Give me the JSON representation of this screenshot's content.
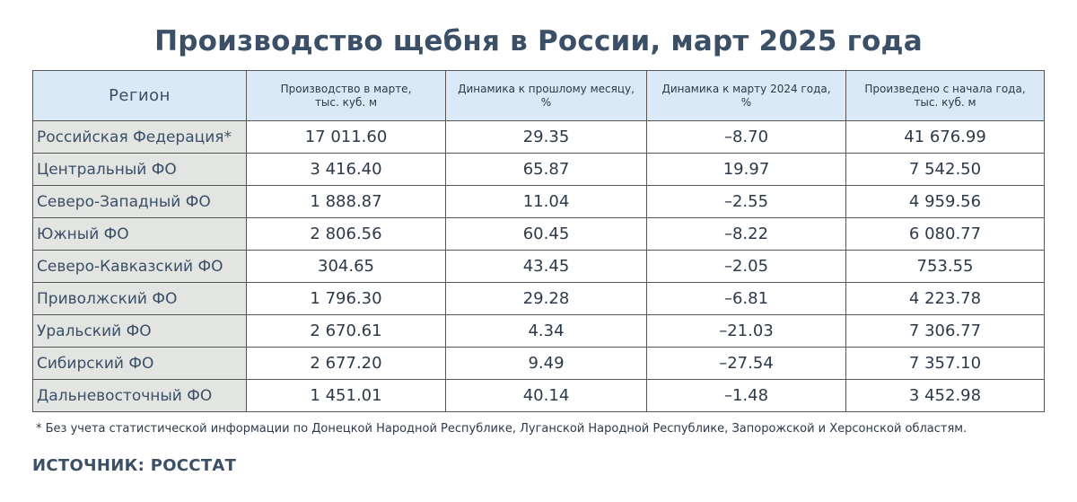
{
  "title": "Производство щебня в России, март 2025 года",
  "table": {
    "headers": {
      "region": "Регион",
      "production_line1": "Производство в марте,",
      "production_line2": "тыс. куб. м",
      "mom_line1": "Динамика к прошлому месяцу,",
      "mom_line2": "%",
      "yoy_line1": "Динамика к марту 2024 года,",
      "yoy_line2": "%",
      "ytd_line1": "Произведено с начала года,",
      "ytd_line2": "тыс. куб. м"
    },
    "rows": [
      {
        "region": "Российская Федерация*",
        "production": "17 011.60",
        "mom": "29.35",
        "mom_sign": "pos",
        "yoy": "–8.70",
        "yoy_sign": "neg",
        "ytd": "41 676.99"
      },
      {
        "region": "Центральный ФО",
        "production": "3 416.40",
        "mom": "65.87",
        "mom_sign": "pos",
        "yoy": "19.97",
        "yoy_sign": "pos",
        "ytd": "7 542.50"
      },
      {
        "region": "Северо-Западный ФО",
        "production": "1 888.87",
        "mom": "11.04",
        "mom_sign": "pos",
        "yoy": "–2.55",
        "yoy_sign": "neg",
        "ytd": "4 959.56"
      },
      {
        "region": "Южный ФО",
        "production": "2 806.56",
        "mom": "60.45",
        "mom_sign": "pos",
        "yoy": "–8.22",
        "yoy_sign": "neg",
        "ytd": "6 080.77"
      },
      {
        "region": "Северо-Кавказский ФО",
        "production": "304.65",
        "mom": "43.45",
        "mom_sign": "pos",
        "yoy": "–2.05",
        "yoy_sign": "neg",
        "ytd": "753.55"
      },
      {
        "region": "Приволжский ФО",
        "production": "1 796.30",
        "mom": "29.28",
        "mom_sign": "pos",
        "yoy": "–6.81",
        "yoy_sign": "neg",
        "ytd": "4 223.78"
      },
      {
        "region": "Уральский ФО",
        "production": "2 670.61",
        "mom": "4.34",
        "mom_sign": "pos",
        "yoy": "–21.03",
        "yoy_sign": "neg",
        "ytd": "7 306.77"
      },
      {
        "region": "Сибирский ФО",
        "production": "2 677.20",
        "mom": "9.49",
        "mom_sign": "pos",
        "yoy": "–27.54",
        "yoy_sign": "neg",
        "ytd": "7 357.10"
      },
      {
        "region": "Дальневосточный ФО",
        "production": "1 451.01",
        "mom": "40.14",
        "mom_sign": "pos",
        "yoy": "–1.48",
        "yoy_sign": "neg",
        "ytd": "3 452.98"
      }
    ]
  },
  "footnote": "* Без учета статистической информации по Донецкой Народной Республике, Луганской Народной Республике, Запорожской и Херсонской областям.",
  "source": "ИСТОЧНИК: РОССТАТ",
  "colors": {
    "positive": "#3fd12a",
    "negative": "#e1261c",
    "header_bg": "#dbe8f5",
    "region_bg": "#e3e5e2",
    "title": "#3b4f66"
  }
}
